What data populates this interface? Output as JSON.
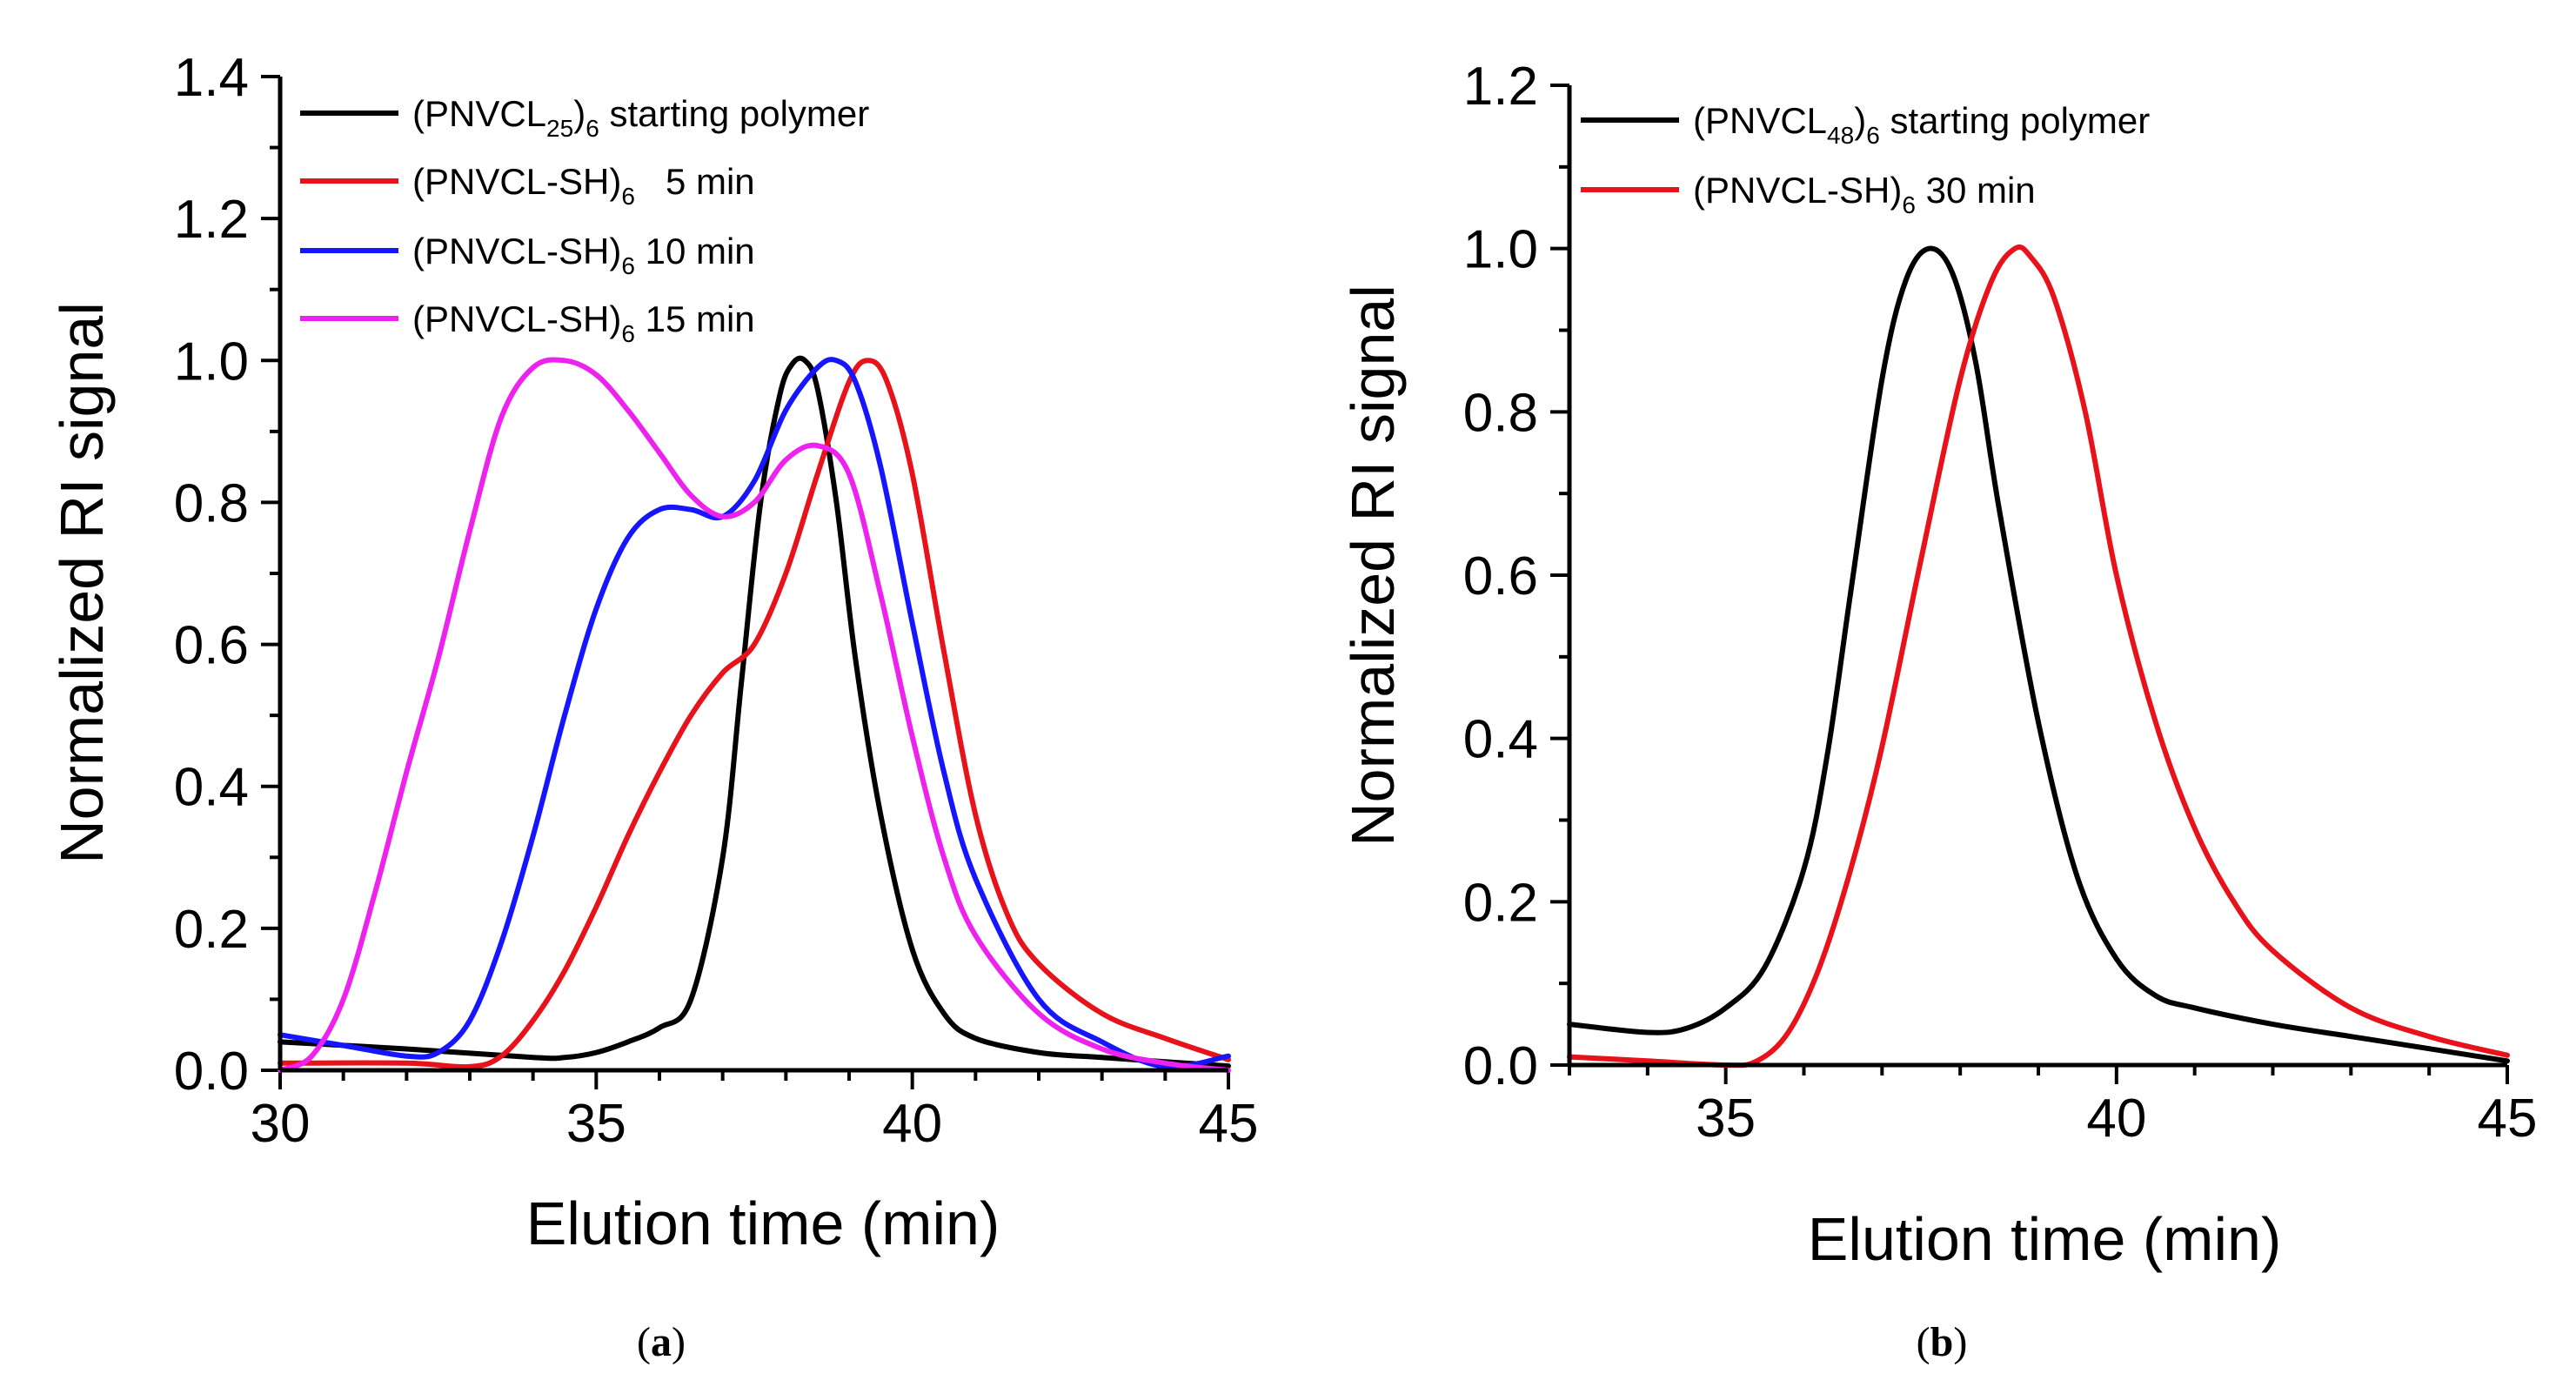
{
  "chart_data": [
    {
      "id": "a",
      "type": "line",
      "xlabel": "Elution time (min)",
      "ylabel": "Normalized RI signal",
      "xlim": [
        30,
        45
      ],
      "ylim": [
        0,
        1.4
      ],
      "xticks": [
        30,
        35,
        40,
        45
      ],
      "xtick_labels": [
        "30",
        "35",
        "40",
        "45"
      ],
      "yticks": [
        0,
        0.2,
        0.4,
        0.6,
        0.8,
        1.0,
        1.2,
        1.4
      ],
      "ytick_labels": [
        "0.0",
        "0.2",
        "0.4",
        "0.6",
        "0.8",
        "1.0",
        "1.2",
        "1.4"
      ],
      "caption_label": "a",
      "legend_position": "top-left inside",
      "series": [
        {
          "name": "(PNVCL25)6 starting polymer",
          "legend_main": "(PNVCL",
          "legend_sub1": "25",
          "legend_mid": ")",
          "legend_sub2": "6",
          "legend_tail": " starting polymer",
          "color": "#000000",
          "x": [
            30,
            32,
            34,
            34.5,
            35,
            35.5,
            36,
            36.5,
            37,
            37.3,
            37.6,
            37.9,
            38.1,
            38.3,
            38.5,
            38.8,
            39.1,
            39.5,
            40,
            40.5,
            41,
            42,
            43,
            44,
            45
          ],
          "y": [
            0.04,
            0.03,
            0.018,
            0.018,
            0.025,
            0.04,
            0.06,
            0.1,
            0.3,
            0.55,
            0.8,
            0.95,
            0.995,
            1.0,
            0.96,
            0.8,
            0.58,
            0.36,
            0.17,
            0.08,
            0.045,
            0.025,
            0.018,
            0.012,
            0.006
          ]
        },
        {
          "name": "(PNVCL-SH)6 5 min",
          "legend_main": "(PNVCL-SH)",
          "legend_sub1": "6",
          "legend_tail": "   5 min",
          "color": "#e8121a",
          "x": [
            30,
            32,
            33,
            33.5,
            34,
            34.5,
            35,
            35.5,
            36,
            36.5,
            37,
            37.5,
            38,
            38.5,
            39,
            39.3,
            39.6,
            40,
            40.5,
            41,
            41.5,
            42,
            43,
            44,
            45
          ],
          "y": [
            0.01,
            0.01,
            0.005,
            0.02,
            0.07,
            0.14,
            0.23,
            0.33,
            0.42,
            0.5,
            0.56,
            0.6,
            0.7,
            0.84,
            0.97,
            1.0,
            0.97,
            0.84,
            0.59,
            0.36,
            0.22,
            0.15,
            0.08,
            0.045,
            0.015
          ]
        },
        {
          "name": "(PNVCL-SH)6 10 min",
          "legend_main": "(PNVCL-SH)",
          "legend_sub1": "6",
          "legend_tail": " 10 min",
          "color": "#1515ff",
          "x": [
            30,
            31,
            32,
            32.5,
            33,
            33.5,
            34,
            34.5,
            35,
            35.5,
            36,
            36.5,
            37,
            37.5,
            38,
            38.5,
            38.8,
            39.1,
            39.5,
            40,
            40.5,
            41,
            42,
            43,
            44,
            45
          ],
          "y": [
            0.05,
            0.035,
            0.02,
            0.025,
            0.07,
            0.18,
            0.33,
            0.5,
            0.65,
            0.75,
            0.79,
            0.79,
            0.78,
            0.83,
            0.93,
            0.99,
            1.0,
            0.97,
            0.85,
            0.63,
            0.42,
            0.27,
            0.1,
            0.04,
            0.005,
            0.02
          ]
        },
        {
          "name": "(PNVCL-SH)6 15 min",
          "legend_main": "(PNVCL-SH)",
          "legend_sub1": "6",
          "legend_tail": " 15 min",
          "color": "#ee22ee",
          "x": [
            30,
            30.5,
            31,
            31.5,
            32,
            32.5,
            33,
            33.5,
            34,
            34.5,
            35,
            35.5,
            36,
            36.5,
            37,
            37.5,
            38,
            38.5,
            39,
            39.5,
            40,
            40.5,
            41,
            42,
            43,
            44,
            45
          ],
          "y": [
            0.0,
            0.02,
            0.1,
            0.25,
            0.42,
            0.58,
            0.76,
            0.92,
            0.99,
            1.0,
            0.98,
            0.93,
            0.87,
            0.81,
            0.78,
            0.8,
            0.86,
            0.88,
            0.84,
            0.67,
            0.47,
            0.3,
            0.19,
            0.08,
            0.03,
            0.01,
            0.0
          ]
        }
      ]
    },
    {
      "id": "b",
      "type": "line",
      "xlabel": "Elution time (min)",
      "ylabel": "Normalized RI signal",
      "xlim": [
        33,
        45
      ],
      "ylim": [
        0,
        1.2
      ],
      "xticks": [
        35,
        40,
        45
      ],
      "xtick_labels": [
        "35",
        "40",
        "45"
      ],
      "yticks": [
        0,
        0.2,
        0.4,
        0.6,
        0.8,
        1.0,
        1.2
      ],
      "ytick_labels": [
        "0.0",
        "0.2",
        "0.4",
        "0.6",
        "0.8",
        "1.0",
        "1.2"
      ],
      "caption_label": "b",
      "legend_position": "top-left inside",
      "series": [
        {
          "name": "(PNVCL48)6 starting polymer",
          "legend_main": "(PNVCL",
          "legend_sub1": "48",
          "legend_mid": ")",
          "legend_sub2": "6",
          "legend_tail": " starting polymer",
          "color": "#000000",
          "x": [
            33,
            34,
            34.5,
            35,
            35.5,
            36,
            36.3,
            36.6,
            37,
            37.3,
            37.6,
            37.9,
            38.2,
            38.5,
            39,
            39.5,
            40,
            40.5,
            41,
            42,
            43,
            44,
            45
          ],
          "y": [
            0.05,
            0.04,
            0.045,
            0.07,
            0.12,
            0.24,
            0.38,
            0.58,
            0.84,
            0.96,
            1.0,
            0.97,
            0.86,
            0.68,
            0.42,
            0.23,
            0.13,
            0.085,
            0.07,
            0.05,
            0.035,
            0.02,
            0.005
          ]
        },
        {
          "name": "(PNVCL-SH)6 30 min",
          "legend_main": "(PNVCL-SH)",
          "legend_sub1": "6",
          "legend_tail": " 30 min",
          "color": "#e8121a",
          "x": [
            33,
            34,
            35,
            35.4,
            35.8,
            36.2,
            36.6,
            37,
            37.5,
            38,
            38.4,
            38.7,
            38.9,
            39.2,
            39.6,
            40,
            40.5,
            41,
            41.5,
            42,
            43,
            44,
            45
          ],
          "y": [
            0.01,
            0.005,
            0.0,
            0.005,
            0.04,
            0.12,
            0.24,
            0.39,
            0.62,
            0.84,
            0.96,
            1.0,
            0.99,
            0.94,
            0.8,
            0.6,
            0.42,
            0.29,
            0.2,
            0.14,
            0.07,
            0.035,
            0.012
          ]
        }
      ]
    }
  ]
}
